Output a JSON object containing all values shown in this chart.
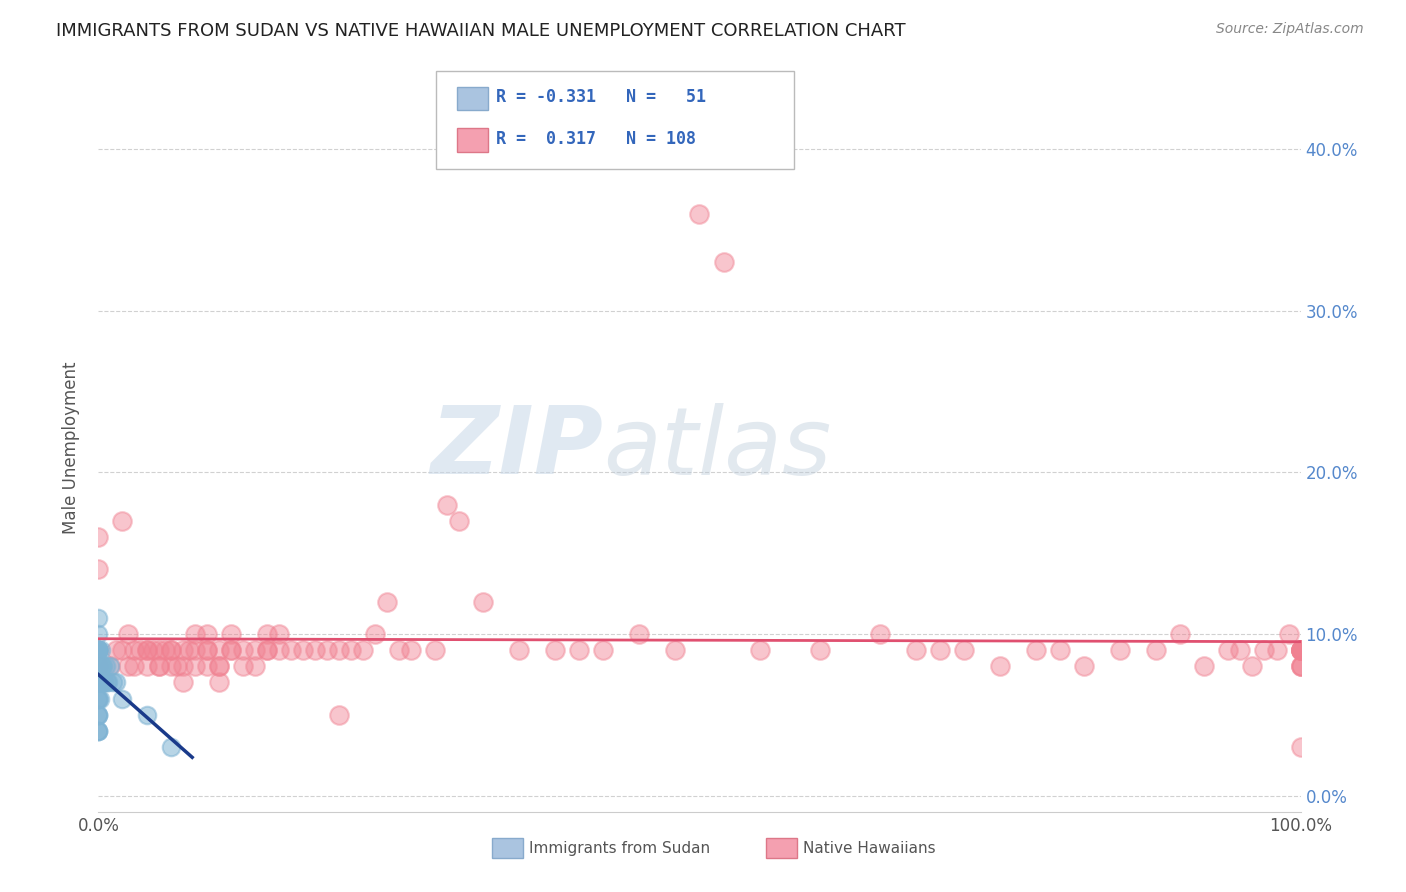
{
  "title": "IMMIGRANTS FROM SUDAN VS NATIVE HAWAIIAN MALE UNEMPLOYMENT CORRELATION CHART",
  "source": "Source: ZipAtlas.com",
  "ylabel": "Male Unemployment",
  "legend_entries": [
    {
      "label": "Immigrants from Sudan",
      "R": -0.331,
      "N": 51,
      "color": "#aac4e0"
    },
    {
      "label": "Native Hawaiians",
      "R": 0.317,
      "N": 108,
      "color": "#f4a0b0"
    }
  ],
  "watermark_zip": "ZIP",
  "watermark_atlas": "atlas",
  "background_color": "#ffffff",
  "grid_color": "#cccccc",
  "blue_scatter_color": "#7fb3d3",
  "pink_scatter_color": "#f08090",
  "blue_line_color": "#1a3a8a",
  "pink_line_color": "#e05070",
  "right_axis_color": "#5588cc",
  "ytick_labels": [
    "0.0%",
    "10.0%",
    "20.0%",
    "30.0%",
    "40.0%"
  ],
  "ytick_values": [
    0.0,
    0.1,
    0.2,
    0.3,
    0.4
  ],
  "xlim": [
    0.0,
    1.0
  ],
  "ylim": [
    -0.01,
    0.44
  ],
  "blue_x": [
    0.0,
    0.0,
    0.0,
    0.0,
    0.0,
    0.0,
    0.0,
    0.0,
    0.0,
    0.0,
    0.0,
    0.0,
    0.0,
    0.0,
    0.0,
    0.0,
    0.0,
    0.0,
    0.0,
    0.0,
    0.0,
    0.0,
    0.0,
    0.0,
    0.0,
    0.0,
    0.0,
    0.0,
    0.0,
    0.0,
    0.001,
    0.001,
    0.002,
    0.002,
    0.002,
    0.003,
    0.003,
    0.003,
    0.004,
    0.004,
    0.005,
    0.005,
    0.006,
    0.007,
    0.008,
    0.01,
    0.012,
    0.015,
    0.02,
    0.04,
    0.06
  ],
  "blue_y": [
    0.04,
    0.04,
    0.05,
    0.05,
    0.06,
    0.06,
    0.06,
    0.07,
    0.07,
    0.07,
    0.07,
    0.07,
    0.08,
    0.08,
    0.08,
    0.08,
    0.08,
    0.09,
    0.09,
    0.09,
    0.09,
    0.09,
    0.09,
    0.09,
    0.09,
    0.09,
    0.1,
    0.11,
    0.04,
    0.05,
    0.06,
    0.07,
    0.07,
    0.08,
    0.09,
    0.07,
    0.07,
    0.08,
    0.07,
    0.08,
    0.07,
    0.07,
    0.08,
    0.07,
    0.07,
    0.08,
    0.07,
    0.07,
    0.06,
    0.05,
    0.03
  ],
  "pink_x": [
    0.0,
    0.0,
    0.0,
    0.01,
    0.015,
    0.02,
    0.02,
    0.025,
    0.025,
    0.03,
    0.03,
    0.035,
    0.04,
    0.04,
    0.04,
    0.045,
    0.05,
    0.05,
    0.05,
    0.055,
    0.06,
    0.06,
    0.06,
    0.065,
    0.07,
    0.07,
    0.07,
    0.075,
    0.08,
    0.08,
    0.08,
    0.09,
    0.09,
    0.09,
    0.09,
    0.1,
    0.1,
    0.1,
    0.1,
    0.11,
    0.11,
    0.11,
    0.12,
    0.12,
    0.13,
    0.13,
    0.14,
    0.14,
    0.14,
    0.15,
    0.15,
    0.16,
    0.17,
    0.18,
    0.19,
    0.2,
    0.2,
    0.21,
    0.22,
    0.23,
    0.24,
    0.25,
    0.26,
    0.28,
    0.29,
    0.3,
    0.32,
    0.35,
    0.38,
    0.4,
    0.42,
    0.45,
    0.48,
    0.5,
    0.52,
    0.55,
    0.6,
    0.65,
    0.68,
    0.7,
    0.72,
    0.75,
    0.78,
    0.8,
    0.82,
    0.85,
    0.88,
    0.9,
    0.92,
    0.94,
    0.95,
    0.96,
    0.97,
    0.98,
    0.99,
    1.0,
    1.0,
    1.0,
    1.0,
    1.0,
    1.0,
    1.0,
    1.0,
    1.0,
    1.0,
    1.0
  ],
  "pink_y": [
    0.16,
    0.14,
    0.08,
    0.08,
    0.09,
    0.09,
    0.17,
    0.08,
    0.1,
    0.09,
    0.08,
    0.09,
    0.08,
    0.09,
    0.09,
    0.09,
    0.08,
    0.08,
    0.09,
    0.09,
    0.09,
    0.08,
    0.09,
    0.08,
    0.07,
    0.08,
    0.09,
    0.09,
    0.08,
    0.09,
    0.1,
    0.08,
    0.09,
    0.09,
    0.1,
    0.07,
    0.08,
    0.08,
    0.09,
    0.09,
    0.09,
    0.1,
    0.08,
    0.09,
    0.08,
    0.09,
    0.09,
    0.09,
    0.1,
    0.09,
    0.1,
    0.09,
    0.09,
    0.09,
    0.09,
    0.05,
    0.09,
    0.09,
    0.09,
    0.1,
    0.12,
    0.09,
    0.09,
    0.09,
    0.18,
    0.17,
    0.12,
    0.09,
    0.09,
    0.09,
    0.09,
    0.1,
    0.09,
    0.36,
    0.33,
    0.09,
    0.09,
    0.1,
    0.09,
    0.09,
    0.09,
    0.08,
    0.09,
    0.09,
    0.08,
    0.09,
    0.09,
    0.1,
    0.08,
    0.09,
    0.09,
    0.08,
    0.09,
    0.09,
    0.1,
    0.08,
    0.09,
    0.09,
    0.03,
    0.08,
    0.09,
    0.09,
    0.09,
    0.08,
    0.09,
    0.09
  ]
}
